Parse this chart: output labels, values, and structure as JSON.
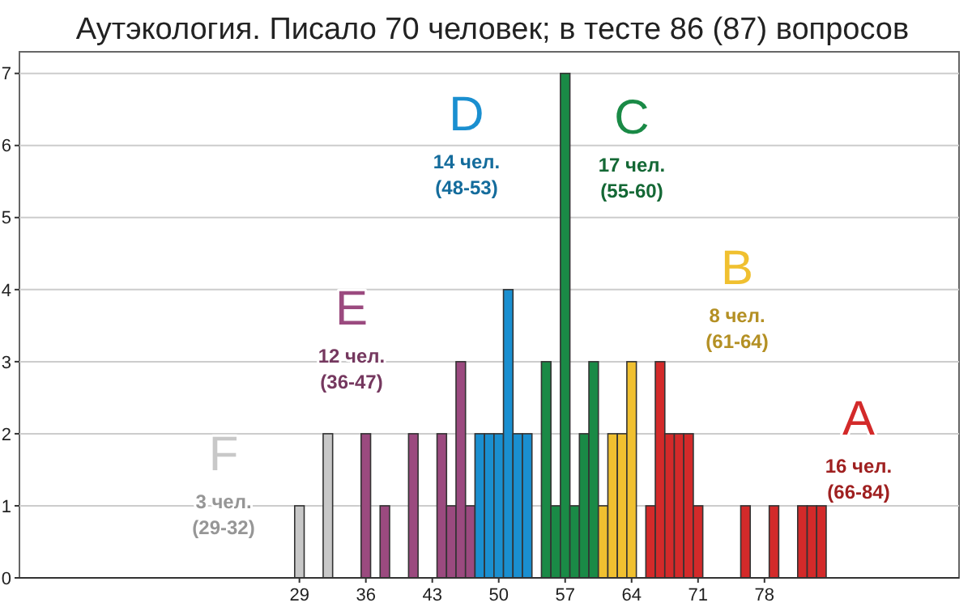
{
  "chart_data": {
    "type": "bar",
    "title": "Аутэкология. Писало 70 человек; в тесте 86 (87) вопросов",
    "x": [
      29,
      32,
      36,
      38,
      41,
      44,
      45,
      46,
      47,
      48,
      49,
      50,
      51,
      52,
      53,
      55,
      56,
      57,
      58,
      59,
      60,
      61,
      62,
      63,
      64,
      66,
      67,
      68,
      69,
      70,
      71,
      76,
      79,
      82,
      83,
      84
    ],
    "values": [
      1,
      2,
      2,
      1,
      2,
      2,
      1,
      3,
      1,
      2,
      2,
      2,
      4,
      2,
      2,
      3,
      1,
      7,
      1,
      2,
      3,
      1,
      2,
      2,
      3,
      1,
      3,
      2,
      2,
      2,
      1,
      1,
      1,
      1,
      1,
      1
    ],
    "colors": [
      "#c8c8c8",
      "#c8c8c8",
      "#9b4a7f",
      "#9b4a7f",
      "#9b4a7f",
      "#9b4a7f",
      "#9b4a7f",
      "#9b4a7f",
      "#9b4a7f",
      "#1a8fd0",
      "#1a8fd0",
      "#1a8fd0",
      "#1a8fd0",
      "#1a8fd0",
      "#1a8fd0",
      "#1a8a46",
      "#1a8a46",
      "#1a8a46",
      "#1a8a46",
      "#1a8a46",
      "#1a8a46",
      "#f0c030",
      "#f0c030",
      "#f0c030",
      "#f0c030",
      "#d32a2a",
      "#d32a2a",
      "#d32a2a",
      "#d32a2a",
      "#d32a2a",
      "#d32a2a",
      "#d32a2a",
      "#d32a2a",
      "#d32a2a",
      "#d32a2a",
      "#d32a2a"
    ],
    "xlim": [
      -0.5,
      98.5
    ],
    "xticks": [
      29,
      36,
      43,
      50,
      57,
      64,
      71,
      78
    ],
    "ylim": [
      0,
      7.3
    ],
    "yticks": [
      0,
      1,
      2,
      3,
      4,
      5,
      6,
      7
    ],
    "grid": "y",
    "annotations": [
      "F",
      "3 чел.",
      "(29-32)",
      "E",
      "12 чел.",
      "(36-47)",
      "D",
      "14 чел.",
      "(48-53)",
      "C",
      "17 чел.",
      "(55-60)",
      "B",
      "8 чел.",
      "(61-64)",
      "A",
      "16 чел.",
      "(66-84)"
    ]
  }
}
